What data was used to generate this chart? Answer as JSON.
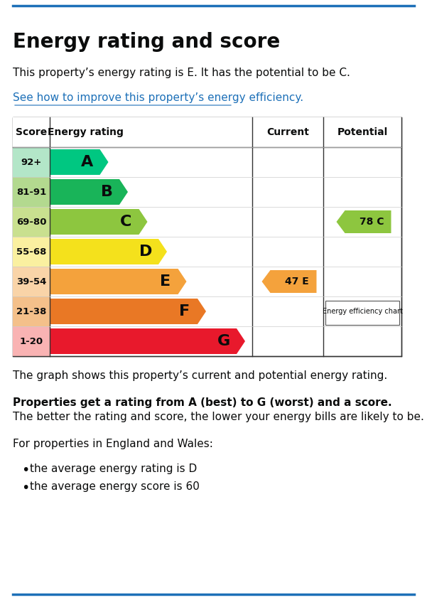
{
  "title": "Energy rating and score",
  "subtitle": "This property’s energy rating is E. It has the potential to be C.",
  "link_text": "See how to improve this property’s energy efficiency.",
  "ratings": [
    "A",
    "B",
    "C",
    "D",
    "E",
    "F",
    "G"
  ],
  "scores": [
    "92+",
    "81-91",
    "69-80",
    "55-68",
    "39-54",
    "21-38",
    "1-20"
  ],
  "colors": [
    "#00c781",
    "#19b459",
    "#8dc63f",
    "#f4e11c",
    "#f4a23c",
    "#e97825",
    "#e8192c"
  ],
  "score_bg_colors": [
    "#b3e6c8",
    "#b3d98f",
    "#c9e08f",
    "#faf0a0",
    "#f9d4a8",
    "#f4c08a",
    "#f9b3b3"
  ],
  "bar_widths": [
    1.5,
    2.0,
    2.5,
    3.0,
    3.5,
    4.0,
    5.0
  ],
  "current_rating": "E",
  "current_score": 47,
  "current_row": 4,
  "current_color": "#f4a23c",
  "potential_rating": "C",
  "potential_score": 78,
  "potential_row": 2,
  "potential_color": "#8dc63f",
  "col_headers": [
    "Score",
    "Energy rating",
    "Current",
    "Potential"
  ],
  "footer_text1": "The graph shows this property’s current and potential energy rating.",
  "footer_bold1": "Properties get a rating from A (best) to G (worst) and a score.",
  "footer_text2": " The better the rating and score, the lower your energy bills are likely to be.",
  "footer_text3": "For properties in England and Wales:",
  "bullet1": "the average energy rating is D",
  "bullet2": "the average energy score is 60",
  "top_border_color": "#1d70b8",
  "bottom_border_color": "#1d70b8",
  "link_color": "#1d70b8",
  "text_color": "#0b0c0c",
  "efficiency_chart_label": "Energy efficiency chart"
}
